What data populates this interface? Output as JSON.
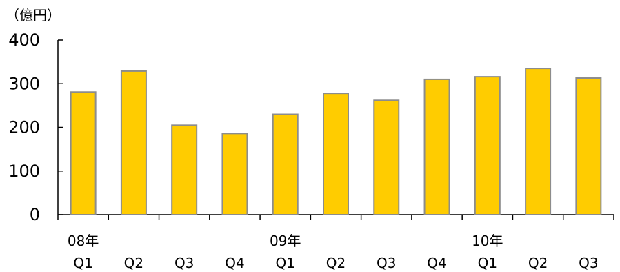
{
  "chart_data": {
    "type": "bar",
    "unit_label": "（億円）",
    "title": "",
    "xlabel": "",
    "ylabel": "",
    "ylim": [
      0,
      400
    ],
    "yticks": [
      0,
      100,
      200,
      300,
      400
    ],
    "categories": [
      "Q1",
      "Q2",
      "Q3",
      "Q4",
      "Q1",
      "Q2",
      "Q3",
      "Q4",
      "Q1",
      "Q2",
      "Q3"
    ],
    "year_labels": [
      {
        "label": "08年",
        "category_index": 0
      },
      {
        "label": "09年",
        "category_index": 4
      },
      {
        "label": "10年",
        "category_index": 8
      }
    ],
    "series": [
      {
        "values": [
          281,
          329,
          205,
          186,
          230,
          278,
          262,
          310,
          316,
          335,
          313
        ]
      }
    ],
    "grid": false,
    "legend": "none",
    "colors": {
      "bar_fill": "#FFCC00",
      "bar_stroke": "#8C8C8C",
      "axis": "#000000"
    }
  }
}
